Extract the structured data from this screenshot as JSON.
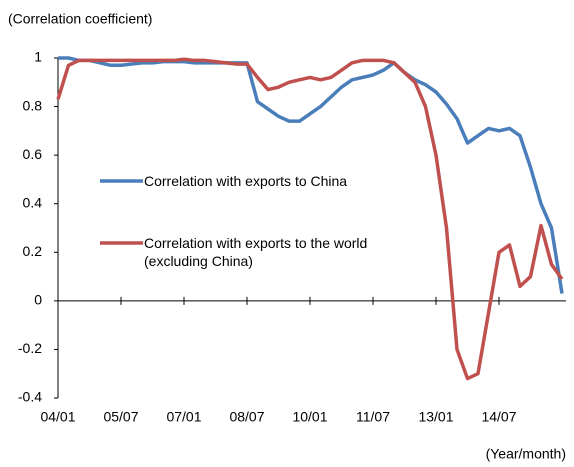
{
  "chart_data": {
    "type": "line",
    "y_label": "(Correlation coefficient)",
    "x_label": "(Year/month)",
    "x": [
      "04/01",
      "04/04",
      "04/07",
      "04/10",
      "05/01",
      "05/04",
      "05/07",
      "05/10",
      "06/01",
      "06/04",
      "06/07",
      "06/10",
      "07/01",
      "07/04",
      "07/07",
      "07/10",
      "08/01",
      "08/04",
      "08/07",
      "08/10",
      "09/01",
      "09/04",
      "09/07",
      "09/10",
      "10/01",
      "10/04",
      "10/07",
      "10/10",
      "11/01",
      "11/04",
      "11/07",
      "11/10",
      "12/01",
      "12/04",
      "12/07",
      "12/10",
      "13/01",
      "13/04",
      "13/07",
      "13/10",
      "14/01",
      "14/04",
      "14/07",
      "14/10",
      "15/01",
      "15/04",
      "15/07",
      "15/10",
      "16/01"
    ],
    "xticks": [
      "04/01",
      "05/07",
      "07/01",
      "08/07",
      "10/01",
      "11/07",
      "13/01",
      "14/07"
    ],
    "ylim": [
      -0.4,
      1
    ],
    "yticks": [
      -0.4,
      -0.2,
      0,
      0.2,
      0.4,
      0.6,
      0.8,
      1
    ],
    "series": [
      {
        "name": "Correlation with exports to China",
        "color": "#4a7ebb",
        "values": [
          1.0,
          1.0,
          0.99,
          0.99,
          0.98,
          0.97,
          0.97,
          0.975,
          0.98,
          0.98,
          0.985,
          0.985,
          0.985,
          0.98,
          0.98,
          0.98,
          0.98,
          0.98,
          0.98,
          0.82,
          0.79,
          0.76,
          0.74,
          0.74,
          0.77,
          0.8,
          0.84,
          0.88,
          0.91,
          0.92,
          0.93,
          0.95,
          0.98,
          0.94,
          0.91,
          0.89,
          0.86,
          0.81,
          0.75,
          0.65,
          0.68,
          0.71,
          0.7,
          0.71,
          0.68,
          0.55,
          0.4,
          0.3,
          0.03
        ]
      },
      {
        "name": "Correlation with exports to the world (excluding China)",
        "color": "#c0504d",
        "values": [
          0.83,
          0.97,
          0.99,
          0.99,
          0.99,
          0.99,
          0.99,
          0.99,
          0.99,
          0.99,
          0.99,
          0.99,
          0.995,
          0.99,
          0.99,
          0.985,
          0.98,
          0.975,
          0.975,
          0.92,
          0.87,
          0.88,
          0.9,
          0.91,
          0.92,
          0.91,
          0.92,
          0.95,
          0.98,
          0.99,
          0.99,
          0.99,
          0.98,
          0.94,
          0.9,
          0.8,
          0.6,
          0.3,
          -0.2,
          -0.32,
          -0.3,
          -0.05,
          0.2,
          0.23,
          0.06,
          0.1,
          0.31,
          0.15,
          0.09
        ]
      }
    ]
  }
}
